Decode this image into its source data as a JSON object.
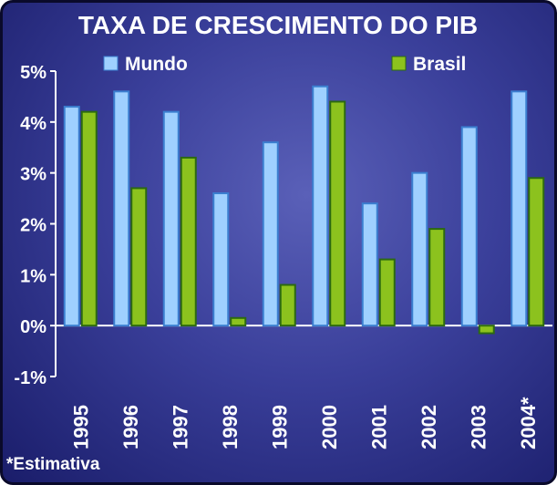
{
  "chart_data": {
    "type": "bar",
    "title": "TAXA DE CRESCIMENTO DO PIB",
    "categories": [
      "1995",
      "1996",
      "1997",
      "1998",
      "1999",
      "2000",
      "2001",
      "2002",
      "2003",
      "2004*"
    ],
    "series": [
      {
        "name": "Mundo",
        "color": "#9fd0ff",
        "values": [
          4.3,
          4.6,
          4.2,
          2.6,
          3.6,
          4.7,
          2.4,
          3.0,
          3.9,
          4.6
        ]
      },
      {
        "name": "Brasil",
        "color": "#8cc21e",
        "values": [
          4.2,
          2.7,
          3.3,
          0.15,
          0.8,
          4.4,
          1.3,
          1.9,
          -0.15,
          2.9
        ]
      }
    ],
    "y_ticks": [
      "5%",
      "4%",
      "3%",
      "2%",
      "1%",
      "0%",
      "-1%"
    ],
    "ylim": [
      -1,
      5
    ],
    "legend_position": "top",
    "grid": false,
    "footnote": "*Estimativa"
  }
}
